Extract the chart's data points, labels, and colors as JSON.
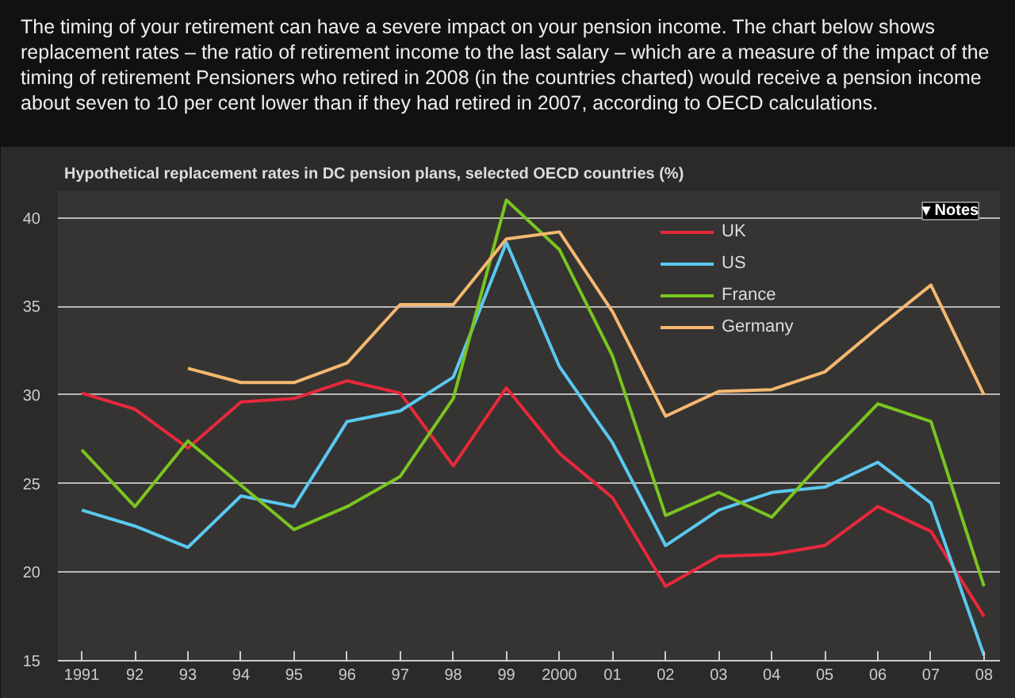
{
  "chart_data": {
    "type": "line",
    "title": "Hypothetical replacement rates in DC pension plans, selected OECD countries (%)",
    "annotations": [
      "The timing of your retirement can have a severe impact on your pension income. The chart below shows replacement rates – the ratio of retirement income to the last salary – which are a measure of the impact of the timing of retirement Pensioners who retired in 2008 (in the countries charted) would receive a pension income about seven to 10 per cent lower than if they had retired in 2007, according to OECD calculations.",
      "▾ Notes"
    ],
    "x": [
      1991,
      1992,
      1993,
      1994,
      1995,
      1996,
      1997,
      1998,
      1999,
      2000,
      2001,
      2002,
      2003,
      2004,
      2005,
      2006,
      2007,
      2008
    ],
    "series": [
      {
        "name": "UK",
        "color": "#e8283c",
        "values": [
          30.1,
          29.2,
          27.0,
          29.6,
          29.8,
          30.8,
          30.1,
          26.0,
          30.4,
          26.7,
          24.2,
          19.2,
          20.9,
          21.0,
          21.5,
          23.7,
          22.3,
          17.5
        ]
      },
      {
        "name": "US",
        "color": "#5bc8f0",
        "values": [
          23.5,
          22.6,
          21.4,
          24.3,
          23.7,
          28.5,
          29.1,
          31.0,
          38.6,
          31.6,
          27.3,
          21.5,
          23.5,
          24.5,
          24.8,
          26.2,
          23.9,
          15.3
        ]
      },
      {
        "name": "France",
        "color": "#7ac520",
        "values": [
          26.9,
          23.7,
          27.4,
          24.9,
          22.4,
          23.7,
          25.4,
          29.8,
          41.0,
          38.2,
          32.2,
          23.2,
          24.5,
          23.1,
          26.4,
          29.5,
          28.5,
          19.2
        ]
      },
      {
        "name": "Germany",
        "color": "#f5b870",
        "values": [
          null,
          null,
          31.5,
          30.7,
          30.7,
          31.8,
          35.1,
          35.1,
          38.8,
          39.2,
          34.7,
          28.8,
          30.2,
          30.3,
          31.3,
          33.8,
          36.2,
          30.0
        ]
      }
    ],
    "xlim": [
      1990.55,
      2008.3
    ],
    "xticks": [
      {
        "value": 1991,
        "label": "1991"
      },
      {
        "value": 1992,
        "label": "92"
      },
      {
        "value": 1993,
        "label": "93"
      },
      {
        "value": 1994,
        "label": "94"
      },
      {
        "value": 1995,
        "label": "95"
      },
      {
        "value": 1996,
        "label": "96"
      },
      {
        "value": 1997,
        "label": "97"
      },
      {
        "value": 1998,
        "label": "98"
      },
      {
        "value": 1999,
        "label": "99"
      },
      {
        "value": 2000,
        "label": "2000"
      },
      {
        "value": 2001,
        "label": "01"
      },
      {
        "value": 2002,
        "label": "02"
      },
      {
        "value": 2003,
        "label": "03"
      },
      {
        "value": 2004,
        "label": "04"
      },
      {
        "value": 2005,
        "label": "05"
      },
      {
        "value": 2006,
        "label": "06"
      },
      {
        "value": 2007,
        "label": "07"
      },
      {
        "value": 2008,
        "label": "08"
      }
    ],
    "ylim": [
      15,
      41.5
    ],
    "yticks": [
      15,
      20,
      25,
      30,
      35,
      40
    ],
    "grid": "y",
    "legend": "top right"
  }
}
